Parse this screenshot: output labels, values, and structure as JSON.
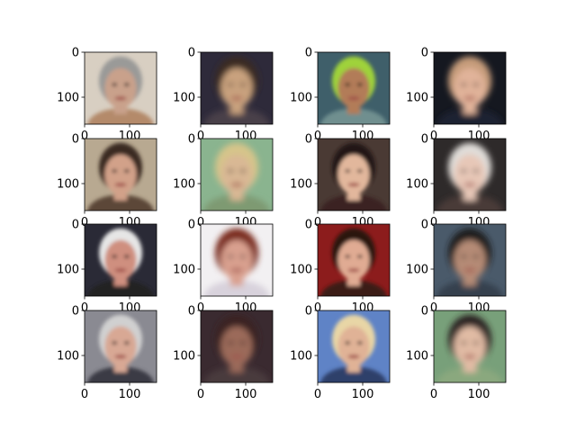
{
  "chart_data": {
    "type": "image-grid",
    "rows": 4,
    "cols": 4,
    "panel_xlim": [
      0,
      160
    ],
    "panel_ylim": [
      160,
      0
    ],
    "x_ticks": [
      0,
      100
    ],
    "y_ticks": [
      0,
      100
    ],
    "panels": [
      {
        "row": 0,
        "col": 0,
        "kind": "real",
        "palette": {
          "bg": "#d8cfc2",
          "skin": "#c9a18b",
          "hair": "#9a9a98",
          "cloth": "#b48a6a"
        }
      },
      {
        "row": 0,
        "col": 1,
        "kind": "generated",
        "palette": {
          "bg": "#2e2a3a",
          "skin": "#c9a27e",
          "hair": "#3b2a20",
          "cloth": "#4a3f48"
        }
      },
      {
        "row": 0,
        "col": 2,
        "kind": "real",
        "palette": {
          "bg": "#3f5f6a",
          "skin": "#b27c58",
          "hair": "#9fd23a",
          "cloth": "#6f8f8f"
        }
      },
      {
        "row": 0,
        "col": 3,
        "kind": "generated",
        "palette": {
          "bg": "#151820",
          "skin": "#e1b39a",
          "hair": "#c69c7a",
          "cloth": "#1c2030"
        }
      },
      {
        "row": 1,
        "col": 0,
        "kind": "real",
        "palette": {
          "bg": "#b8a991",
          "skin": "#d2a189",
          "hair": "#3a2a22",
          "cloth": "#5b4637"
        }
      },
      {
        "row": 1,
        "col": 1,
        "kind": "generated",
        "palette": {
          "bg": "#8ab48f",
          "skin": "#d9b894",
          "hair": "#d6c58a",
          "cloth": "#7e9a72"
        }
      },
      {
        "row": 1,
        "col": 2,
        "kind": "real",
        "palette": {
          "bg": "#4a3a34",
          "skin": "#e2b79c",
          "hair": "#231612",
          "cloth": "#3a2420"
        }
      },
      {
        "row": 1,
        "col": 3,
        "kind": "generated",
        "palette": {
          "bg": "#2e2a2a",
          "skin": "#e7c7b7",
          "hair": "#e0ddd9",
          "cloth": "#4a3a38"
        }
      },
      {
        "row": 2,
        "col": 0,
        "kind": "real",
        "palette": {
          "bg": "#2a2a36",
          "skin": "#cf8f7f",
          "hair": "#e6e6e6",
          "cloth": "#242424"
        }
      },
      {
        "row": 2,
        "col": 1,
        "kind": "generated",
        "palette": {
          "bg": "#f2f0f2",
          "skin": "#d9a08f",
          "hair": "#7a2a1f",
          "cloth": "#d8d2dc"
        }
      },
      {
        "row": 2,
        "col": 2,
        "kind": "real",
        "palette": {
          "bg": "#8c1c1c",
          "skin": "#e0ab93",
          "hair": "#2a140e",
          "cloth": "#3a1a14"
        }
      },
      {
        "row": 2,
        "col": 3,
        "kind": "generated",
        "palette": {
          "bg": "#4a5a6a",
          "skin": "#b58b76",
          "hair": "#1e1a1c",
          "cloth": "#34404e"
        }
      },
      {
        "row": 3,
        "col": 0,
        "kind": "real",
        "palette": {
          "bg": "#8a8a92",
          "skin": "#d8a894",
          "hair": "#d0d0d0",
          "cloth": "#3a3a44"
        }
      },
      {
        "row": 3,
        "col": 1,
        "kind": "generated",
        "palette": {
          "bg": "#3a2a30",
          "skin": "#9b6a5a",
          "hair": "#3a2420",
          "cloth": "#4a3a3e"
        }
      },
      {
        "row": 3,
        "col": 2,
        "kind": "real",
        "palette": {
          "bg": "#5f83c6",
          "skin": "#e0b296",
          "hair": "#e8d6a6",
          "cloth": "#2d3f6a"
        }
      },
      {
        "row": 3,
        "col": 3,
        "kind": "generated",
        "palette": {
          "bg": "#78a07a",
          "skin": "#e1bba4",
          "hair": "#2c2420",
          "cloth": "#8aa87e"
        }
      }
    ]
  }
}
